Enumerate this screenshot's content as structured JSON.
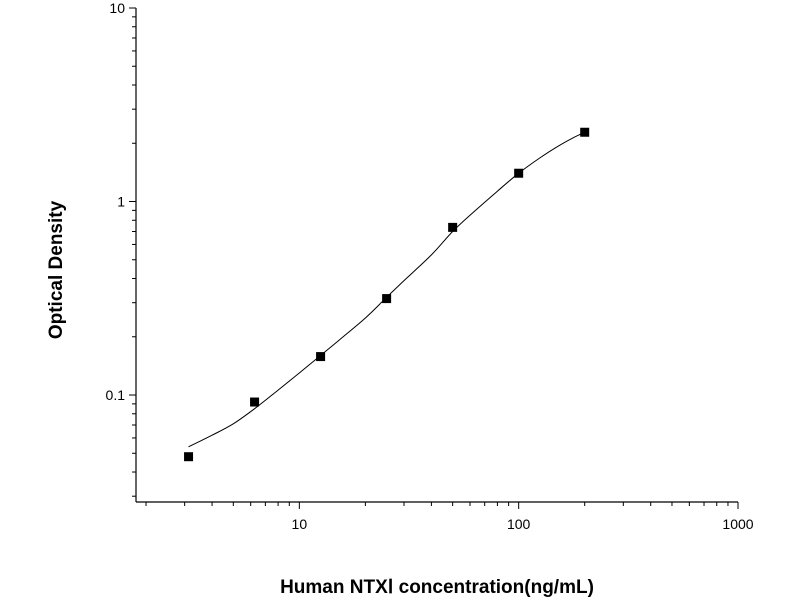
{
  "chart_data": {
    "type": "scatter",
    "title": "",
    "xlabel": "Human NTXⅠ concentration(ng/mL)",
    "ylabel": "Optical Density",
    "xscale": "log",
    "yscale": "log",
    "xlim": [
      1.8,
      1000
    ],
    "ylim": [
      0.028,
      10
    ],
    "x_ticks": [
      {
        "value": 10,
        "label": "10"
      },
      {
        "value": 100,
        "label": "100"
      },
      {
        "value": 1000,
        "label": "1000"
      }
    ],
    "y_ticks": [
      {
        "value": 0.1,
        "label": "0.1"
      },
      {
        "value": 1,
        "label": "1"
      },
      {
        "value": 10,
        "label": "10"
      }
    ],
    "grid": false,
    "legend": "none",
    "marker_color": "#000000",
    "line_color": "#000000",
    "series": [
      {
        "marker": "square",
        "x": [
          3.125,
          6.25,
          12.5,
          25,
          50,
          100,
          200
        ],
        "y": [
          0.048,
          0.092,
          0.158,
          0.315,
          0.735,
          1.4,
          2.28
        ]
      }
    ],
    "fit_curve": {
      "x": [
        3.125,
        4,
        5,
        6.25,
        8,
        10,
        12.5,
        15,
        20,
        25,
        30,
        40,
        50,
        60,
        80,
        100,
        125,
        150,
        175,
        200
      ],
      "y": [
        0.054,
        0.062,
        0.071,
        0.085,
        0.106,
        0.13,
        0.16,
        0.19,
        0.25,
        0.32,
        0.39,
        0.53,
        0.7,
        0.85,
        1.13,
        1.4,
        1.68,
        1.92,
        2.12,
        2.28
      ]
    }
  }
}
